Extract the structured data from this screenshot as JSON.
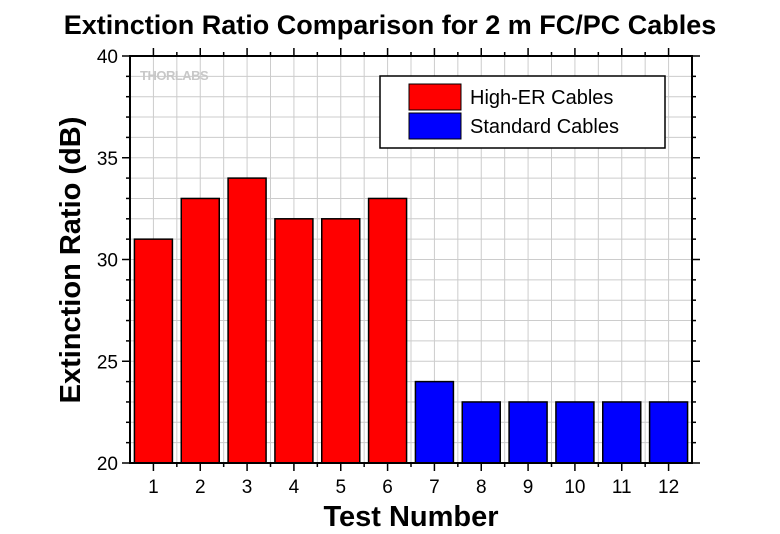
{
  "chart_data": {
    "type": "bar",
    "title": "Extinction Ratio Comparison for 2 m FC/PC Cables",
    "xlabel": "Test Number",
    "ylabel": "Extinction Ratio (dB)",
    "categories": [
      "1",
      "2",
      "3",
      "4",
      "5",
      "6",
      "7",
      "8",
      "9",
      "10",
      "11",
      "12"
    ],
    "series": [
      {
        "name": "High-ER Cables",
        "color": "#ff0000",
        "values": [
          31,
          33,
          34,
          32,
          32,
          33,
          null,
          null,
          null,
          null,
          null,
          null
        ]
      },
      {
        "name": "Standard Cables",
        "color": "#0000ff",
        "values": [
          null,
          null,
          null,
          null,
          null,
          null,
          24,
          23,
          23,
          23,
          23,
          23
        ]
      }
    ],
    "ylim": [
      20,
      40
    ],
    "yticks": [
      20,
      25,
      30,
      35,
      40
    ],
    "grid": true,
    "legend_position": "top-right",
    "watermark": "THORLABS"
  }
}
